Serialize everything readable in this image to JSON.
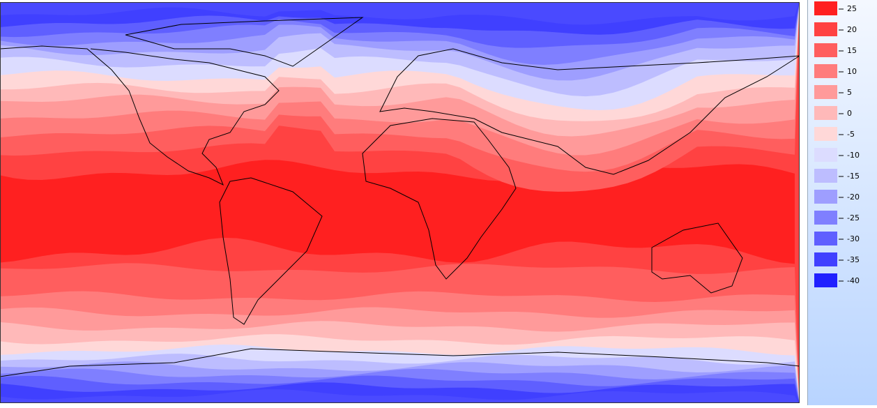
{
  "legend": {
    "items": [
      {
        "label": "25",
        "color": "#ff2020"
      },
      {
        "label": "20",
        "color": "#ff4242"
      },
      {
        "label": "15",
        "color": "#ff5e5e"
      },
      {
        "label": "10",
        "color": "#ff7c7c"
      },
      {
        "label": "5",
        "color": "#ff9a9a"
      },
      {
        "label": "0",
        "color": "#ffb9b9"
      },
      {
        "label": "-5",
        "color": "#ffd8d8"
      },
      {
        "label": "-10",
        "color": "#dcdcff"
      },
      {
        "label": "-15",
        "color": "#bdbdff"
      },
      {
        "label": "-20",
        "color": "#9e9eff"
      },
      {
        "label": "-25",
        "color": "#7f7fff"
      },
      {
        "label": "-30",
        "color": "#5f5fff"
      },
      {
        "label": "-35",
        "color": "#4040ff"
      },
      {
        "label": "-40",
        "color": "#2020ff"
      }
    ]
  }
}
